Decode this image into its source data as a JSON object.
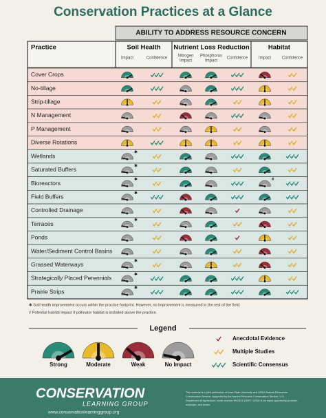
{
  "title": "Conservation Practices at a Glance",
  "header": "ABILITY TO ADDRESS RESOURCE CONCERN",
  "columns": {
    "practice": "Practice",
    "groups": [
      {
        "name": "Soil Health",
        "sub": [
          [
            "Impact"
          ],
          [
            "Confidence"
          ]
        ]
      },
      {
        "name": "Nutrient Loss Reduction",
        "sub": [
          [
            "Nitrogen",
            "Impact"
          ],
          [
            "Phosphorus",
            "Impact"
          ],
          [
            "Confidence"
          ]
        ]
      },
      {
        "name": "Habitat",
        "sub": [
          [
            "Impact"
          ],
          [
            "Confidence"
          ]
        ]
      }
    ]
  },
  "rows": [
    {
      "practice": "Cover Crops",
      "ratings": [
        0,
        3,
        0,
        0,
        3,
        2,
        2
      ]
    },
    {
      "practice": "No-tillage",
      "ratings": [
        0,
        3,
        3,
        0,
        3,
        1,
        2
      ]
    },
    {
      "practice": "Strip-tillage",
      "ratings": [
        1,
        2,
        3,
        0,
        2,
        1,
        2
      ]
    },
    {
      "practice": "N Management",
      "ratings": [
        3,
        2,
        2,
        3,
        3,
        3,
        2
      ]
    },
    {
      "practice": "P Management",
      "ratings": [
        3,
        2,
        3,
        1,
        2,
        3,
        2
      ]
    },
    {
      "practice": "Diverse Rotations",
      "ratings": [
        1,
        3,
        1,
        1,
        2,
        1,
        2
      ]
    },
    {
      "practice": "Wetlands",
      "ratings": [
        3,
        2,
        0,
        3,
        3,
        0,
        3
      ],
      "soil_note": "✱"
    },
    {
      "practice": "Saturated Buffers",
      "ratings": [
        3,
        2,
        0,
        3,
        2,
        0,
        2
      ],
      "soil_note": "✱"
    },
    {
      "practice": "Bioreactors",
      "ratings": [
        3,
        2,
        0,
        3,
        3,
        3,
        3
      ],
      "soil_note": "✱",
      "habitat_note": "#"
    },
    {
      "practice": "Field Buffers",
      "ratings": [
        3,
        3,
        2,
        0,
        3,
        0,
        3
      ],
      "soil_note": "✱"
    },
    {
      "practice": "Controlled Drainage",
      "ratings": [
        3,
        2,
        2,
        3,
        1,
        3,
        2
      ]
    },
    {
      "practice": "Terraces",
      "ratings": [
        3,
        2,
        3,
        0,
        2,
        2,
        2
      ],
      "soil_note": "✱"
    },
    {
      "practice": "Ponds",
      "ratings": [
        3,
        2,
        2,
        0,
        1,
        1,
        2
      ]
    },
    {
      "practice": "Water/Sediment Control Basins",
      "ratings": [
        3,
        2,
        3,
        0,
        2,
        2,
        2
      ]
    },
    {
      "practice": "Grassed Waterways",
      "ratings": [
        3,
        2,
        3,
        1,
        2,
        2,
        2
      ],
      "soil_note": "✱"
    },
    {
      "practice": "Strategically Placed Perennials",
      "ratings": [
        3,
        3,
        0,
        0,
        3,
        1,
        2
      ],
      "soil_note": "✱"
    },
    {
      "practice": "Prairie Strips",
      "ratings": [
        3,
        3,
        0,
        0,
        3,
        0,
        3
      ],
      "soil_note": "✱"
    }
  ],
  "footnotes": [
    "✱ Soil health improvement occurs within the practice footprint. However, no improvement is measured in the rest of the field.",
    "# Potential habitat impact if pollinator habitat is installed above the practice."
  ],
  "legend": {
    "title": "Legend",
    "impact": [
      "Strong",
      "Moderate",
      "Weak",
      "No Impact"
    ],
    "confidence": [
      "Anecdotal Evidence",
      "Multiple Studies",
      "Scientific Consensus"
    ]
  },
  "footer": {
    "brand": "CONSERVATION",
    "sub": "LEARNING GROUP",
    "url": "www.conservationlearninggroup.org",
    "disclaimer": [
      "This material is a joint publication of Iowa State University and USDA Natural Resources",
      "Conservation Service, supported by the Natural Resource Conservation Service, U.S.",
      "Department of Agriculture, under number 69-6114-15007. USDA is an equal opportunity provider,",
      "employer, and lender."
    ]
  }
}
